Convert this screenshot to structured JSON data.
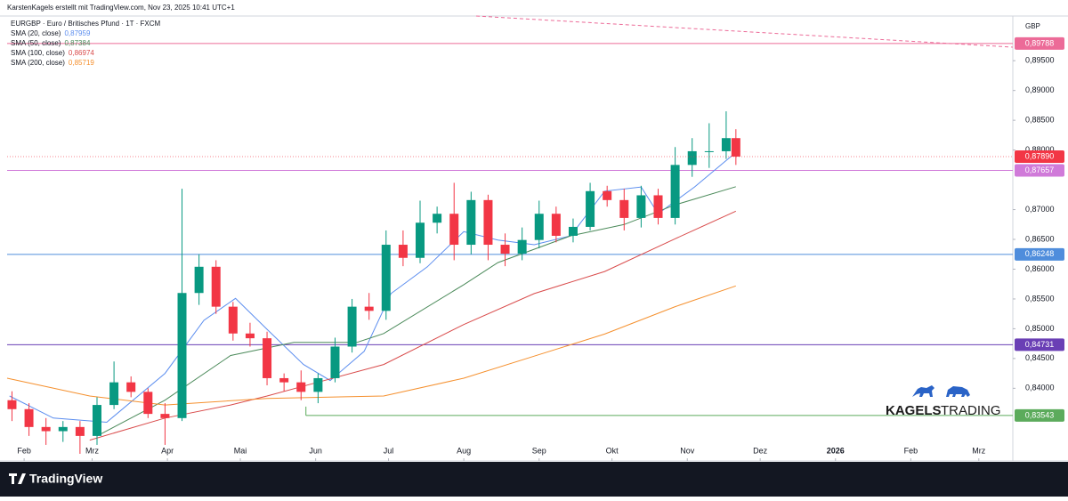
{
  "header": "KarstenKagels erstellt mit TradingView.com, Nov 23, 2025 10:41 UTC+1",
  "chart_data": {
    "type": "candlestick",
    "title": "EURGBP · Euro / Britisches Pfund · 1T · FXCM",
    "currency": "GBP",
    "up_color": "#089981",
    "down_color": "#f23645",
    "x": [
      -5,
      2,
      9,
      16,
      23,
      30,
      37,
      44,
      51,
      58,
      65,
      72,
      79,
      86,
      93,
      100,
      107,
      114,
      121,
      128,
      135,
      142,
      149,
      156,
      163,
      170,
      177,
      184,
      191,
      198,
      205,
      212,
      219,
      226,
      233,
      240,
      247,
      254,
      261,
      268,
      275,
      282,
      289,
      293
    ],
    "open": [
      0.838,
      0.8365,
      0.8335,
      0.8328,
      0.8335,
      0.832,
      0.8372,
      0.841,
      0.8394,
      0.8357,
      0.835,
      0.856,
      0.8604,
      0.8537,
      0.8492,
      0.8484,
      0.8417,
      0.841,
      0.8394,
      0.8417,
      0.847,
      0.8537,
      0.853,
      0.8641,
      0.8619,
      0.8678,
      0.8693,
      0.8641,
      0.8716,
      0.8641,
      0.8626,
      0.8649,
      0.8693,
      0.8656,
      0.8671,
      0.8731,
      0.8716,
      0.8686,
      0.8724,
      0.8686,
      0.8775,
      0.8798,
      0.8798,
      0.882
    ],
    "high": [
      0.8395,
      0.8375,
      0.835,
      0.8345,
      0.8345,
      0.8385,
      0.8445,
      0.842,
      0.84,
      0.8375,
      0.8735,
      0.8625,
      0.8615,
      0.8545,
      0.851,
      0.8495,
      0.8425,
      0.843,
      0.8425,
      0.8485,
      0.855,
      0.856,
      0.8665,
      0.8665,
      0.8715,
      0.8705,
      0.8745,
      0.873,
      0.8725,
      0.866,
      0.867,
      0.8715,
      0.8705,
      0.8685,
      0.8745,
      0.874,
      0.8735,
      0.874,
      0.8735,
      0.8805,
      0.882,
      0.8845,
      0.8865,
      0.8835
    ],
    "low": [
      0.8345,
      0.832,
      0.8305,
      0.831,
      0.829,
      0.8305,
      0.8365,
      0.8385,
      0.835,
      0.8305,
      0.8345,
      0.854,
      0.8525,
      0.848,
      0.847,
      0.8405,
      0.8395,
      0.838,
      0.8375,
      0.841,
      0.846,
      0.8515,
      0.8515,
      0.8605,
      0.861,
      0.866,
      0.8615,
      0.8625,
      0.8615,
      0.8605,
      0.8615,
      0.8635,
      0.8645,
      0.8645,
      0.8665,
      0.8705,
      0.8665,
      0.867,
      0.8675,
      0.8675,
      0.8755,
      0.877,
      0.8785,
      0.8775
    ],
    "close": [
      0.8365,
      0.8335,
      0.8328,
      0.8335,
      0.832,
      0.8372,
      0.841,
      0.8394,
      0.8357,
      0.835,
      0.856,
      0.8604,
      0.8537,
      0.8492,
      0.8484,
      0.8417,
      0.841,
      0.8394,
      0.8417,
      0.847,
      0.8537,
      0.853,
      0.8641,
      0.8619,
      0.8678,
      0.8693,
      0.8641,
      0.8716,
      0.8641,
      0.8626,
      0.8649,
      0.8693,
      0.8656,
      0.8671,
      0.8731,
      0.8716,
      0.8686,
      0.8724,
      0.8686,
      0.8775,
      0.8798,
      0.8798,
      0.882,
      0.8789
    ],
    "series": [
      {
        "name": "SMA (20, close)",
        "color": "#5b8def",
        "last_label": "0,87959",
        "x": [
          -6,
          12,
          34,
          58,
          74,
          87,
          100,
          115,
          126,
          140,
          151,
          166,
          181,
          195,
          210,
          225,
          239,
          254,
          261,
          276,
          293
        ],
        "values": [
          0.8387,
          0.835,
          0.8343,
          0.8425,
          0.8514,
          0.8551,
          0.8499,
          0.844,
          0.8413,
          0.8462,
          0.8559,
          0.8604,
          0.8663,
          0.8649,
          0.8641,
          0.8656,
          0.8731,
          0.8738,
          0.8693,
          0.8738,
          0.87959
        ]
      },
      {
        "name": "SMA (50, close)",
        "color": "#4b8a5a",
        "last_label": "0,87384",
        "x": [
          30,
          58,
          85,
          111,
          137,
          148,
          181,
          195,
          225,
          247,
          268,
          293
        ],
        "values": [
          0.832,
          0.838,
          0.8455,
          0.8477,
          0.8477,
          0.8492,
          0.8574,
          0.8611,
          0.8656,
          0.8675,
          0.8708,
          0.87384
        ]
      },
      {
        "name": "SMA (100, close)",
        "color": "#d94b4b",
        "last_label": "0,86974",
        "x": [
          27,
          58,
          85,
          100,
          118,
          148,
          181,
          210,
          239,
          268,
          293
        ],
        "values": [
          0.8313,
          0.835,
          0.8372,
          0.8387,
          0.8407,
          0.844,
          0.8507,
          0.8559,
          0.8596,
          0.8651,
          0.86974
        ]
      },
      {
        "name": "SMA (200, close)",
        "color": "#f5902e",
        "last_label": "0,85719",
        "x": [
          -7,
          27,
          58,
          100,
          148,
          181,
          210,
          239,
          268,
          293
        ],
        "values": [
          0.8417,
          0.8387,
          0.8372,
          0.8383,
          0.8387,
          0.8417,
          0.8454,
          0.8491,
          0.8537,
          0.85719
        ]
      }
    ],
    "levels": [
      {
        "value": 0.89788,
        "label": "0,89788",
        "color": "#ec6b98"
      },
      {
        "value": 0.87657,
        "label": "0,87657",
        "color": "#d07ad9"
      },
      {
        "value": 0.86248,
        "label": "0,86248",
        "color": "#4f8ddc"
      },
      {
        "value": 0.84731,
        "label": "0,84731",
        "color": "#6a3fb5"
      },
      {
        "value": 0.83543,
        "label": "0,83543",
        "color": "#5cab5c",
        "x_start": 116
      }
    ],
    "last_price": {
      "value": 0.8789,
      "label": "0,87890",
      "color": "#f23645"
    },
    "xlim": [
      -7,
      407
    ],
    "xticks": [
      {
        "value": 0,
        "label": "Feb"
      },
      {
        "value": 28,
        "label": "Mrz"
      },
      {
        "value": 59,
        "label": "Apr"
      },
      {
        "value": 89,
        "label": "Mai"
      },
      {
        "value": 120,
        "label": "Jun"
      },
      {
        "value": 150,
        "label": "Jul"
      },
      {
        "value": 181,
        "label": "Aug"
      },
      {
        "value": 212,
        "label": "Sep"
      },
      {
        "value": 242,
        "label": "Okt"
      },
      {
        "value": 273,
        "label": "Nov"
      },
      {
        "value": 303,
        "label": "Dez"
      },
      {
        "value": 334,
        "label": "2026"
      },
      {
        "value": 365,
        "label": "Feb"
      },
      {
        "value": 393,
        "label": "Mrz"
      }
    ],
    "ylim": [
      0.8278,
      0.9025
    ],
    "yticks": [
      {
        "value": 0.84,
        "label": "0,84000"
      },
      {
        "value": 0.845,
        "label": "0,84500"
      },
      {
        "value": 0.85,
        "label": "0,85000"
      },
      {
        "value": 0.855,
        "label": "0,85500"
      },
      {
        "value": 0.86,
        "label": "0,86000"
      },
      {
        "value": 0.865,
        "label": "0,86500"
      },
      {
        "value": 0.87,
        "label": "0,87000"
      },
      {
        "value": 0.88,
        "label": "0,88000"
      },
      {
        "value": 0.885,
        "label": "0,88500"
      },
      {
        "value": 0.89,
        "label": "0,89000"
      },
      {
        "value": 0.895,
        "label": "0,89500"
      }
    ]
  },
  "brand": {
    "name_bold": "KAGELS",
    "name_light": "TRADING"
  },
  "footer": "TradingView"
}
